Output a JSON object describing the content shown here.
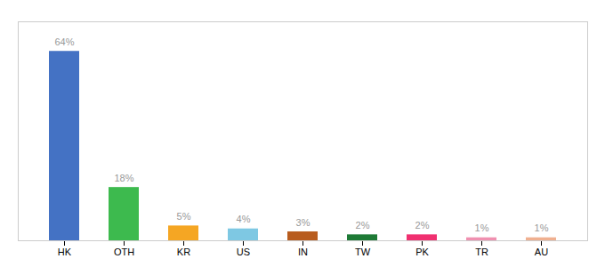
{
  "chart_data": {
    "type": "bar",
    "categories": [
      "HK",
      "OTH",
      "KR",
      "US",
      "IN",
      "TW",
      "PK",
      "TR",
      "AU"
    ],
    "values": [
      64,
      18,
      5,
      4,
      3,
      2,
      2,
      1,
      1
    ],
    "value_labels": [
      "64%",
      "18%",
      "5%",
      "4%",
      "3%",
      "2%",
      "2%",
      "1%",
      "1%"
    ],
    "colors": [
      "#4472c4",
      "#3dba4e",
      "#f5a623",
      "#7ec8e3",
      "#b85c1e",
      "#1e7a36",
      "#f03070",
      "#f090b0",
      "#f0b090"
    ],
    "ylim": [
      0,
      74
    ],
    "data_labels": true,
    "tick_labels": "x",
    "grid": false
  }
}
